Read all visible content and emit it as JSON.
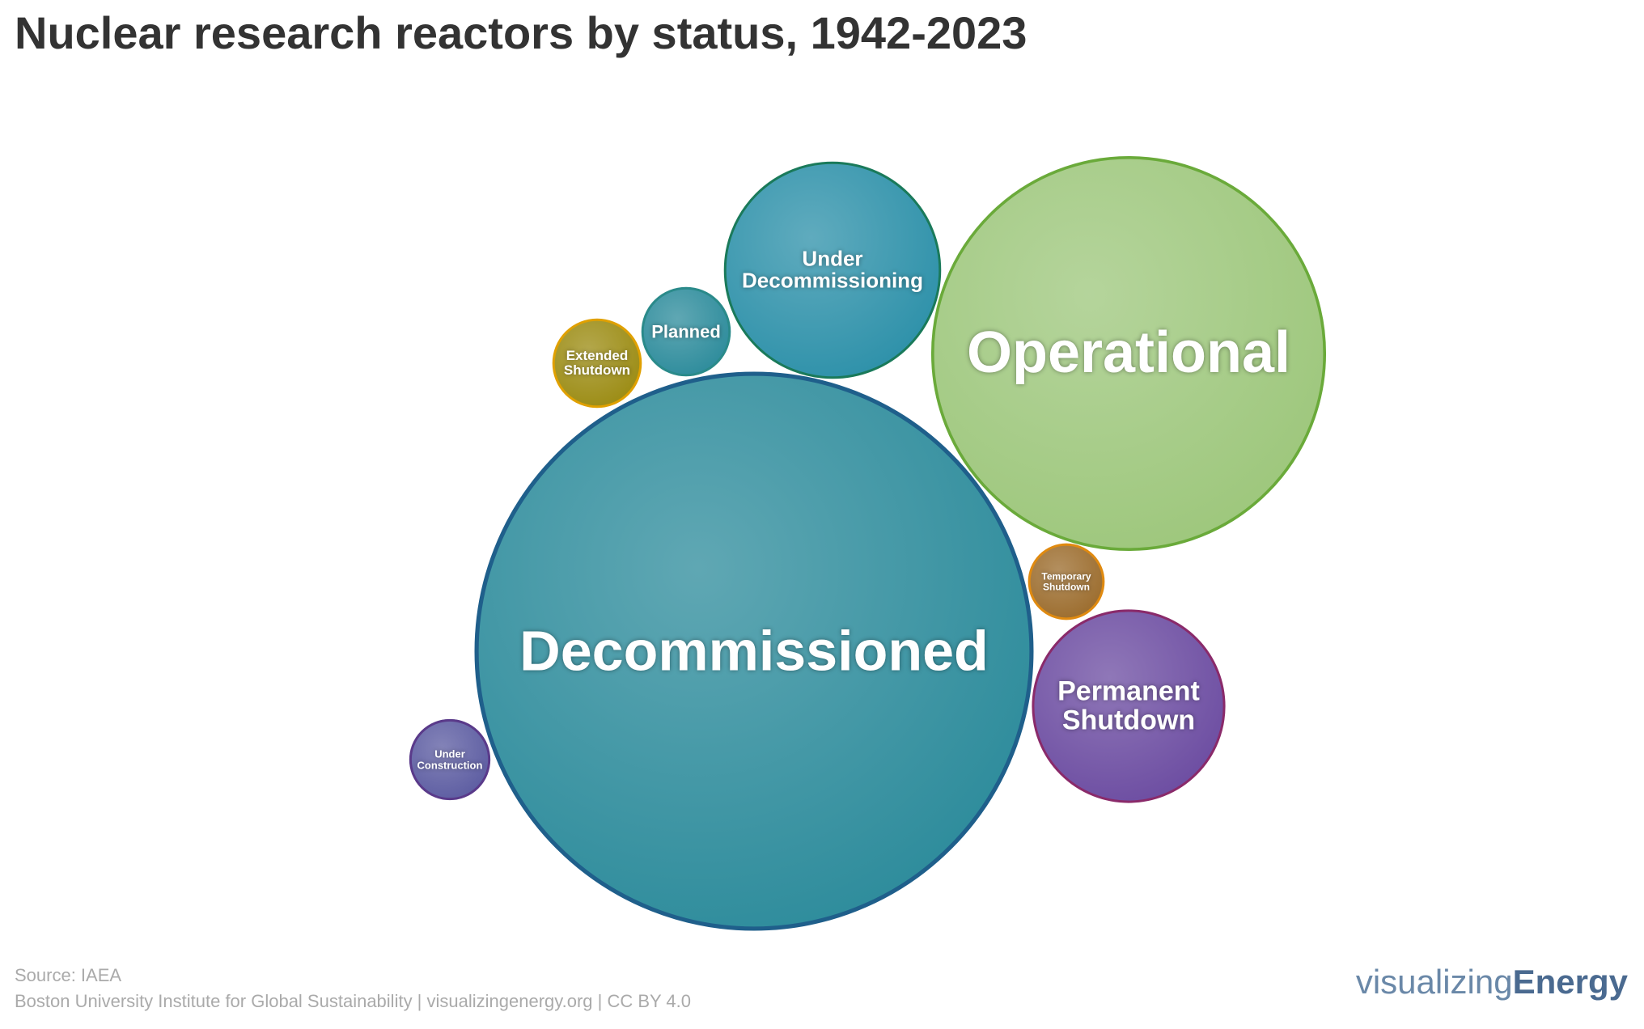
{
  "chart_data": {
    "type": "bubble",
    "title": "Nuclear research reactors by status, 1942-2023",
    "categories": [
      "Decommissioned",
      "Operational",
      "Under Decommissioning",
      "Permanent Shutdown",
      "Planned",
      "Extended Shutdown",
      "Under Construction",
      "Temporary Shutdown"
    ],
    "values": [
      447,
      223,
      67,
      53,
      11,
      11,
      9,
      8
    ],
    "colors": [
      "#2a8a9a",
      "#9cc67a",
      "#2a8fa8",
      "#6a4aa0",
      "#2a8a9a",
      "#9a8a10",
      "#5a5aa0",
      "#9a6a2a"
    ],
    "stroke_colors": [
      "#1f5f8b",
      "#6aaa3a",
      "#1a7a5a",
      "#8a2a6a",
      "#2a8a8a",
      "#e0a000",
      "#5a3a8a",
      "#e08a10"
    ],
    "source": "Source: IAEA",
    "credit": "Boston University Institute for Global Sustainability | visualizingenergy.org | CC BY 4.0",
    "logo": {
      "light": "visualizing",
      "bold": "Energy"
    }
  }
}
